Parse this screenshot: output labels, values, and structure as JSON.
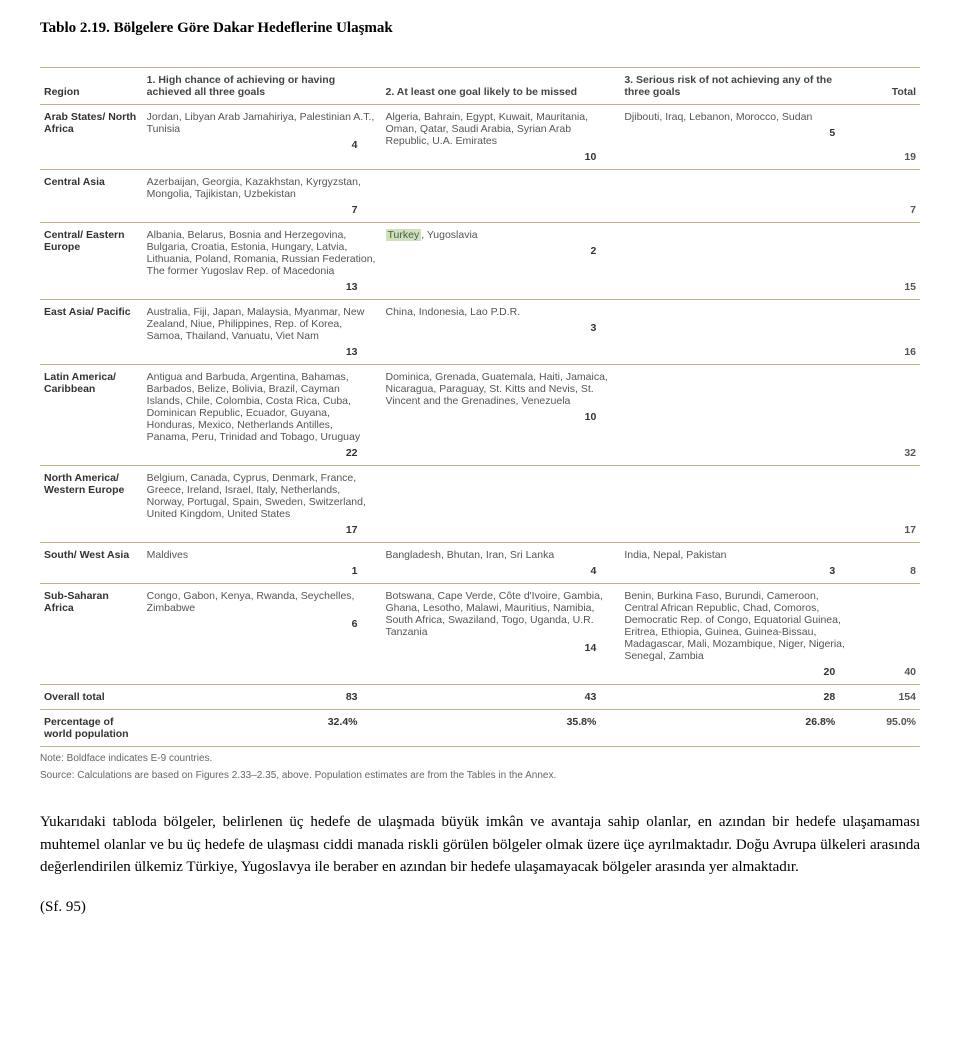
{
  "title": "Tablo 2.19. Bölgelere Göre Dakar Hedeflerine Ulaşmak",
  "headers": {
    "region": "Region",
    "col1": "1. High chance of achieving or having achieved all three goals",
    "col2": "2. At least one goal likely to be missed",
    "col3": "3. Serious risk of not achieving any of the three goals",
    "total": "Total"
  },
  "rows": [
    {
      "region": "Arab States/ North Africa",
      "c1": "Jordan, Libyan Arab Jamahiriya, Palestinian A.T., Tunisia",
      "n1": "4",
      "c2": "Algeria, Bahrain, Egypt, Kuwait, Mauritania, Oman, Qatar, Saudi Arabia, Syrian Arab Republic, U.A. Emirates",
      "n2": "10",
      "c3": "Djibouti, Iraq, Lebanon, Morocco, Sudan",
      "n3": "5",
      "total": "19"
    },
    {
      "region": "Central Asia",
      "c1": "Azerbaijan, Georgia, Kazakhstan, Kyrgyzstan, Mongolia, Tajikistan, Uzbekistan",
      "n1": "7",
      "c2": "",
      "n2": "",
      "c3": "",
      "n3": "",
      "total": "7"
    },
    {
      "region": "Central/ Eastern Europe",
      "c1": "Albania, Belarus, Bosnia and Herzegovina, Bulgaria, Croatia, Estonia, Hungary, Latvia, Lithuania, Poland, Romania, Russian Federation, The former Yugoslav Rep. of Macedonia",
      "n1": "13",
      "c2_hl": "Turkey",
      "c2_rest": ", Yugoslavia",
      "n2": "2",
      "c3": "",
      "n3": "",
      "total": "15"
    },
    {
      "region": "East Asia/ Pacific",
      "c1": "Australia, Fiji, Japan, Malaysia, Myanmar, New Zealand, Niue, Philippines, Rep. of Korea, Samoa, Thailand, Vanuatu, Viet Nam",
      "n1": "13",
      "c2": "China, Indonesia, Lao P.D.R.",
      "n2": "3",
      "c3": "",
      "n3": "",
      "total": "16"
    },
    {
      "region": "Latin America/ Caribbean",
      "c1": "Antigua and Barbuda, Argentina, Bahamas, Barbados, Belize, Bolivia, Brazil, Cayman Islands, Chile, Colombia, Costa Rica, Cuba, Dominican Republic, Ecuador, Guyana, Honduras, Mexico, Netherlands Antilles, Panama, Peru, Trinidad and Tobago, Uruguay",
      "n1": "22",
      "c2": "Dominica, Grenada, Guatemala, Haiti, Jamaica, Nicaragua, Paraguay, St. Kitts and Nevis, St. Vincent and the Grenadines, Venezuela",
      "n2": "10",
      "c3": "",
      "n3": "",
      "total": "32"
    },
    {
      "region": "North America/ Western Europe",
      "c1": "Belgium, Canada, Cyprus, Denmark, France, Greece, Ireland, Israel, Italy, Netherlands, Norway, Portugal, Spain, Sweden, Switzerland, United Kingdom, United States",
      "n1": "17",
      "c2": "",
      "n2": "",
      "c3": "",
      "n3": "",
      "total": "17"
    },
    {
      "region": "South/ West Asia",
      "c1": "Maldives",
      "n1": "1",
      "c2": "Bangladesh, Bhutan, Iran, Sri Lanka",
      "n2": "4",
      "c3": "India, Nepal, Pakistan",
      "n3": "3",
      "total": "8"
    },
    {
      "region": "Sub-Saharan Africa",
      "c1": "Congo, Gabon, Kenya, Rwanda, Seychelles, Zimbabwe",
      "n1": "6",
      "c2": "Botswana, Cape Verde, Côte d'Ivoire, Gambia, Ghana, Lesotho, Malawi, Mauritius, Namibia, South Africa, Swaziland, Togo, Uganda, U.R. Tanzania",
      "n2": "14",
      "c3": "Benin, Burkina Faso, Burundi, Cameroon, Central African Republic, Chad, Comoros, Democratic Rep. of Congo, Equatorial Guinea, Eritrea, Ethiopia, Guinea, Guinea-Bissau, Madagascar, Mali, Mozambique, Niger, Nigeria, Senegal, Zambia",
      "n3": "20",
      "total": "40"
    }
  ],
  "overall": {
    "label": "Overall total",
    "n1": "83",
    "n2": "43",
    "n3": "28",
    "total": "154"
  },
  "percentage": {
    "label": "Percentage of world population",
    "n1": "32.4%",
    "n2": "35.8%",
    "n3": "26.8%",
    "total": "95.0%"
  },
  "note1": "Note: Boldface indicates E-9 countries.",
  "note2": "Source: Calculations are based on Figures 2.33–2.35, above. Population estimates are from the Tables in the Annex.",
  "paragraph": "Yukarıdaki tabloda bölgeler, belirlenen üç hedefe de ulaşmada büyük imkân ve avantaja sahip olanlar, en azından bir hedefe ulaşamaması muhtemel olanlar ve bu üç hedefe de ulaşması ciddi manada riskli görülen bölgeler olmak üzere üçe ayrılmaktadır. Doğu Avrupa ülkeleri arasında değerlendirilen ülkemiz Türkiye, Yugoslavya ile beraber en azından bir hedefe ulaşamayacak bölgeler arasında yer almaktadır.",
  "sf": "(Sf. 95)"
}
